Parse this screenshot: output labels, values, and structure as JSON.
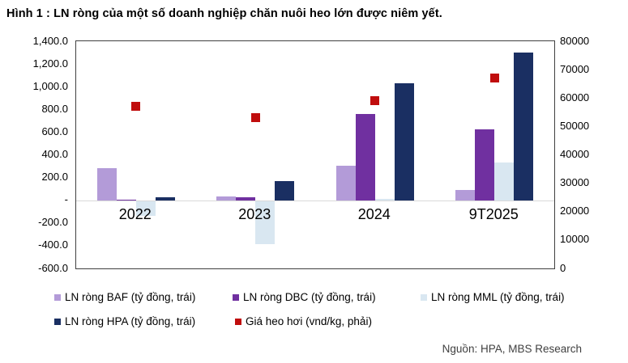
{
  "figure": {
    "title": "Hình 1 : LN ròng của một số doanh nghiệp chăn nuôi heo lớn được niêm yết.",
    "source": "Nguồn: HPA, MBS Research"
  },
  "chart_data": {
    "type": "bar",
    "subtype": "grouped-bar-with-scatter-overlay-dual-axis",
    "title": "Hình 1 : LN ròng của một số doanh nghiệp chăn nuôi heo lớn được niêm yết.",
    "categories": [
      "2022",
      "2023",
      "2024",
      "9T2025"
    ],
    "series": [
      {
        "key": "baf",
        "name": "LN ròng BAF (tỷ đồng, trái)",
        "type": "bar",
        "axis": "left",
        "color": "#b39bd8",
        "values": [
          280,
          30,
          305,
          90
        ]
      },
      {
        "key": "dbc",
        "name": "LN ròng DBC (tỷ đồng, trái)",
        "type": "bar",
        "axis": "left",
        "color": "#7030a0",
        "values": [
          5,
          25,
          760,
          625
        ]
      },
      {
        "key": "mml",
        "name": "LN ròng MML (tỷ đồng, trái)",
        "type": "bar",
        "axis": "left",
        "color": "#d9e7f1",
        "values": [
          -130,
          -380,
          15,
          330
        ]
      },
      {
        "key": "hpa",
        "name": "LN ròng HPA (tỷ đồng, trái)",
        "type": "bar",
        "axis": "left",
        "color": "#1a2f62",
        "values": [
          25,
          170,
          1030,
          1300
        ]
      },
      {
        "key": "gia-heo-hoi",
        "name": "Giá heo hơi (vnd/kg, phải)",
        "type": "point",
        "axis": "right",
        "color": "#c00d0d",
        "values": [
          57000,
          53000,
          59000,
          67000
        ]
      }
    ],
    "left_axis": {
      "min": -600,
      "max": 1400,
      "tick_step": 200,
      "tick_labels": [
        "1,400.0",
        "1,200.0",
        "1,000.0",
        "800.0",
        "600.0",
        "400.0",
        "200.0",
        "-",
        "-200.0",
        "-400.0",
        "-600.0"
      ]
    },
    "right_axis": {
      "min": 0,
      "max": 80000,
      "tick_step": 10000,
      "tick_labels": [
        "80000",
        "70000",
        "60000",
        "50000",
        "40000",
        "30000",
        "20000",
        "10000",
        "0"
      ]
    },
    "legend_position": "bottom",
    "grid": "zero-line-only"
  }
}
